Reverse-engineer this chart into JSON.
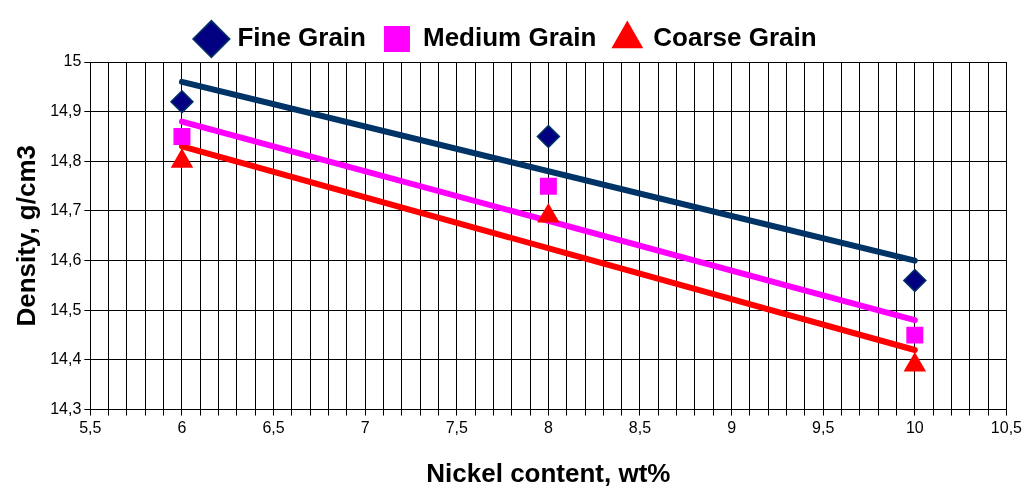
{
  "chart_data": {
    "type": "scatter",
    "xlabel": "Nickel content, wt%",
    "ylabel": "Density, g/cm3",
    "xlim": [
      5.5,
      10.5
    ],
    "xticks": [
      {
        "value": 5.5,
        "label": "5,5"
      },
      {
        "value": 5.6,
        "label": null
      },
      {
        "value": 5.7,
        "label": null
      },
      {
        "value": 5.8,
        "label": null
      },
      {
        "value": 5.9,
        "label": null
      },
      {
        "value": 6,
        "label": "6"
      },
      {
        "value": 6.1,
        "label": null
      },
      {
        "value": 6.2,
        "label": null
      },
      {
        "value": 6.3,
        "label": null
      },
      {
        "value": 6.4,
        "label": null
      },
      {
        "value": 6.5,
        "label": "6,5"
      },
      {
        "value": 6.6,
        "label": null
      },
      {
        "value": 6.7,
        "label": null
      },
      {
        "value": 6.8,
        "label": null
      },
      {
        "value": 6.9,
        "label": null
      },
      {
        "value": 7,
        "label": "7"
      },
      {
        "value": 7.1,
        "label": null
      },
      {
        "value": 7.2,
        "label": null
      },
      {
        "value": 7.3,
        "label": null
      },
      {
        "value": 7.4,
        "label": null
      },
      {
        "value": 7.5,
        "label": "7,5"
      },
      {
        "value": 7.6,
        "label": null
      },
      {
        "value": 7.7,
        "label": null
      },
      {
        "value": 7.8,
        "label": null
      },
      {
        "value": 7.9,
        "label": null
      },
      {
        "value": 8,
        "label": "8"
      },
      {
        "value": 8.1,
        "label": null
      },
      {
        "value": 8.2,
        "label": null
      },
      {
        "value": 8.3,
        "label": null
      },
      {
        "value": 8.4,
        "label": null
      },
      {
        "value": 8.5,
        "label": "8,5"
      },
      {
        "value": 8.6,
        "label": null
      },
      {
        "value": 8.7,
        "label": null
      },
      {
        "value": 8.8,
        "label": null
      },
      {
        "value": 8.9,
        "label": null
      },
      {
        "value": 9,
        "label": "9"
      },
      {
        "value": 9.1,
        "label": null
      },
      {
        "value": 9.2,
        "label": null
      },
      {
        "value": 9.3,
        "label": null
      },
      {
        "value": 9.4,
        "label": null
      },
      {
        "value": 9.5,
        "label": "9,5"
      },
      {
        "value": 9.6,
        "label": null
      },
      {
        "value": 9.7,
        "label": null
      },
      {
        "value": 9.8,
        "label": null
      },
      {
        "value": 9.9,
        "label": null
      },
      {
        "value": 10,
        "label": "10"
      },
      {
        "value": 10.1,
        "label": null
      },
      {
        "value": 10.2,
        "label": null
      },
      {
        "value": 10.3,
        "label": null
      },
      {
        "value": 10.4,
        "label": null
      },
      {
        "value": 10.5,
        "label": "10,5"
      }
    ],
    "ylim": [
      14.3,
      15
    ],
    "yticks": [
      {
        "value": 14.3,
        "label": "14,3"
      },
      {
        "value": 14.4,
        "label": "14,4"
      },
      {
        "value": 14.5,
        "label": "14,5"
      },
      {
        "value": 14.6,
        "label": "14,6"
      },
      {
        "value": 14.7,
        "label": "14,7"
      },
      {
        "value": 14.8,
        "label": "14,8"
      },
      {
        "value": 14.9,
        "label": "14,9"
      },
      {
        "value": 15,
        "label": "15"
      }
    ],
    "grid": true,
    "legend": "top",
    "series": [
      {
        "type": "line",
        "marker": "none",
        "color": "#003366",
        "x": [
          6,
          10
        ],
        "values": [
          14.96,
          14.6
        ]
      },
      {
        "type": "line",
        "marker": "none",
        "color": "#ff00ff",
        "x": [
          6,
          10
        ],
        "values": [
          14.88,
          14.48
        ]
      },
      {
        "type": "line",
        "marker": "none",
        "color": "#ff0000",
        "x": [
          6,
          10
        ],
        "values": [
          14.83,
          14.42
        ]
      },
      {
        "name": "Fine Grain",
        "marker": "diamond",
        "color": "#000080",
        "x": [
          6,
          8,
          10
        ],
        "values": [
          14.92,
          14.85,
          14.56
        ]
      },
      {
        "name": "Medium Grain",
        "marker": "square",
        "color": "#ff00ff",
        "x": [
          6,
          8,
          10
        ],
        "values": [
          14.85,
          14.75,
          14.45
        ]
      },
      {
        "name": "Coarse Grain",
        "marker": "triangle",
        "color": "#ff0000",
        "x": [
          6,
          8,
          10
        ],
        "values": [
          14.8,
          14.69,
          14.39
        ]
      }
    ]
  }
}
